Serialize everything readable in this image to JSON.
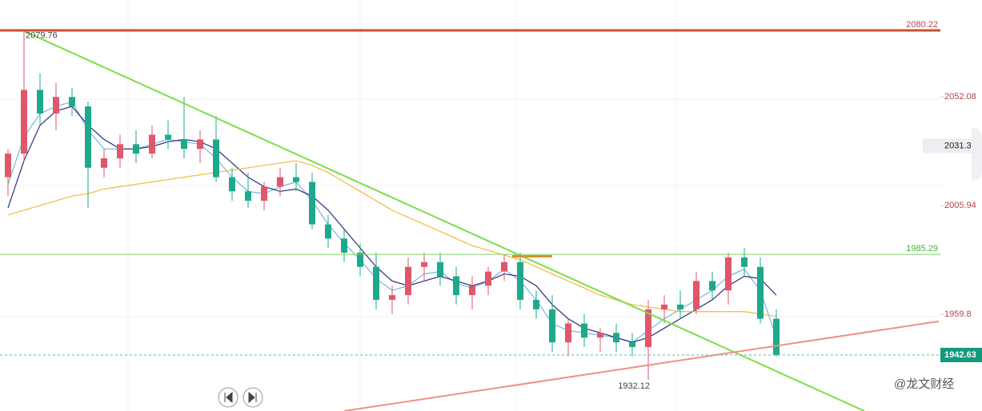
{
  "chart_data": {
    "type": "candlestick",
    "open": [
      2018,
      2028,
      2055,
      2045,
      2052,
      2048,
      2022,
      2026,
      2032,
      2028,
      2036,
      2034,
      2030,
      2034,
      2018,
      2012,
      2008,
      2014,
      2018,
      2016,
      1998,
      1992,
      1986,
      1980,
      1966,
      1968,
      1980,
      1982,
      1976,
      1968,
      1972,
      1978,
      1982,
      1966,
      1962,
      1948,
      1956,
      1950,
      1952,
      1948,
      1946,
      1962,
      1964,
      1962,
      1974,
      1970,
      1984,
      1980,
      1958
    ],
    "high": [
      2030,
      2079.76,
      2062,
      2058,
      2056,
      2050,
      2030,
      2036,
      2038,
      2040,
      2042,
      2052,
      2038,
      2044,
      2022,
      2020,
      2016,
      2022,
      2024,
      2020,
      2002,
      1996,
      1990,
      1986,
      1972,
      1984,
      1986,
      1986,
      1980,
      1976,
      1980,
      1985,
      1986,
      1970,
      1968,
      1958,
      1960,
      1954,
      1956,
      1952,
      1966,
      1968,
      1970,
      1978,
      1978,
      1986,
      1988,
      1984,
      1962
    ],
    "low": [
      2010,
      2025,
      2040,
      2038,
      2044,
      2005,
      2018,
      2022,
      2024,
      2026,
      2030,
      2026,
      2024,
      2016,
      2008,
      2005,
      2004,
      2010,
      2012,
      1996,
      1988,
      1982,
      1976,
      1962,
      1960,
      1964,
      1974,
      1972,
      1964,
      1962,
      1968,
      1974,
      1962,
      1958,
      1944,
      1942,
      1946,
      1944,
      1944,
      1942,
      1932.12,
      1956,
      1958,
      1960,
      1966,
      1964,
      1976,
      1956,
      1942
    ],
    "close": [
      2028,
      2055,
      2045,
      2052,
      2048,
      2022,
      2026,
      2032,
      2028,
      2036,
      2034,
      2030,
      2034,
      2018,
      2012,
      2008,
      2014,
      2018,
      2016,
      1998,
      1992,
      1986,
      1980,
      1966,
      1968,
      1980,
      1982,
      1976,
      1968,
      1972,
      1978,
      1982,
      1966,
      1962,
      1948,
      1956,
      1950,
      1952,
      1948,
      1946,
      1962,
      1964,
      1962,
      1974,
      1970,
      1984,
      1980,
      1958,
      1942.63
    ],
    "up_color": "#e0566a",
    "down_color": "#1ea98b",
    "series": [
      {
        "color": "#6fb8e0",
        "values": [
          2015,
          2035,
          2045,
          2048,
          2050,
          2038,
          2030,
          2030,
          2030,
          2032,
          2034,
          2033,
          2032,
          2026,
          2018,
          2012,
          2011,
          2014,
          2016,
          2008,
          1998,
          1990,
          1983,
          1975,
          1970,
          1972,
          1977,
          1978,
          1973,
          1971,
          1974,
          1979,
          1974,
          1966,
          1956,
          1953,
          1952,
          1951,
          1950,
          1948,
          1953,
          1958,
          1962,
          1966,
          1970,
          1976,
          1979,
          1970,
          1950
        ]
      },
      {
        "color": "#2b2d7c",
        "values": [
          2005,
          2025,
          2040,
          2046,
          2048,
          2040,
          2034,
          2030,
          2030,
          2031,
          2033,
          2034,
          2033,
          2030,
          2024,
          2018,
          2014,
          2012,
          2013,
          2010,
          2004,
          1996,
          1988,
          1980,
          1974,
          1972,
          1974,
          1976,
          1974,
          1972,
          1974,
          1977,
          1976,
          1972,
          1964,
          1958,
          1954,
          1952,
          1950,
          1948,
          1950,
          1954,
          1958,
          1962,
          1966,
          1972,
          1976,
          1975,
          1968
        ]
      },
      {
        "color": "#f5b840",
        "values": [
          2002,
          2004,
          2006,
          2008,
          2010,
          2011,
          2013,
          2014,
          2015,
          2016,
          2017,
          2018,
          2019,
          2020,
          2021,
          2022,
          2023,
          2024,
          2025,
          2023,
          2020,
          2016,
          2012,
          2008,
          2004,
          2001,
          1998,
          1995,
          1992,
          1989,
          1987,
          1985,
          1983,
          1980,
          1977,
          1974,
          1971,
          1968,
          1966,
          1964,
          1963,
          1962,
          1961,
          1961,
          1961,
          1961,
          1961,
          1960,
          1959
        ]
      }
    ],
    "ylim": [
      1918.9,
      2093.1
    ],
    "yticks": [
      2052.08,
      2005.94,
      1959.8
    ],
    "tick_color": "#b5424d",
    "levels": [
      {
        "value": 2080.22,
        "color": "#c9502e",
        "style": "solid",
        "width": 3
      },
      {
        "value": 1985.29,
        "color": "#7fd16a",
        "style": "solid",
        "width": 1
      },
      {
        "value": 1942.63,
        "color": "#4fbf9c",
        "style": "dashed",
        "width": 1,
        "boxed": true
      }
    ],
    "hover_price": 2031.3,
    "trendlines": [
      {
        "x": [
          0.9,
          53.5
        ],
        "y": [
          2080.22,
          1918.9
        ],
        "color": "#7ddd4a",
        "width": 2
      },
      {
        "x": [
          21,
          58.15
        ],
        "y": [
          1918.9,
          1956.9
        ],
        "color": "#ef8f87",
        "width": 2
      },
      {
        "x": [
          31.5,
          34
        ],
        "y": [
          1984.5,
          1984.5
        ],
        "color": "#d8922e",
        "width": 3
      }
    ],
    "annotations": [
      {
        "text": "2079.76",
        "x": 1,
        "y": 2079.76
      },
      {
        "text": "1932.12",
        "x": 40,
        "y": 1932.12
      }
    ],
    "watermark": "@龙文财经"
  }
}
